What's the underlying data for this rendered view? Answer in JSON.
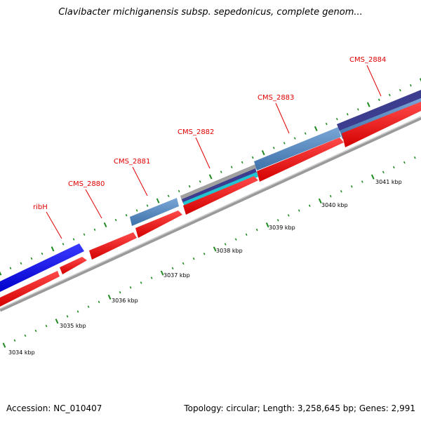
{
  "title": "Clavibacter michiganensis subsp. sepedonicus, complete genom...",
  "colors": {
    "background": "#ffffff",
    "backbone": "#8c8c8c",
    "cds_forward_red": "#ff0000",
    "gene_blue": "#0000ff",
    "gene_steelblue": "#4f86c0",
    "gene_navy": "#3d3d8f",
    "gene_cyan": "#22c5d0",
    "gene_grey": "#a0a0a0",
    "tick_green": "#1f8a1f",
    "label_red": "#e00000"
  },
  "gene_labels": [
    "ribH",
    "CMS_2880",
    "CMS_2881",
    "CMS_2882",
    "CMS_2883",
    "CMS_2884"
  ],
  "kbp_labels": [
    "3034 kbp",
    "3035 kbp",
    "3036 kbp",
    "3037 kbp",
    "3038 kbp",
    "3039 kbp",
    "3040 kbp",
    "3041 kbp"
  ],
  "footer": {
    "accession": "Accession: NC_010407",
    "stats": "Topology: circular; Length: 3,258,645 bp; Genes: 2,991"
  }
}
